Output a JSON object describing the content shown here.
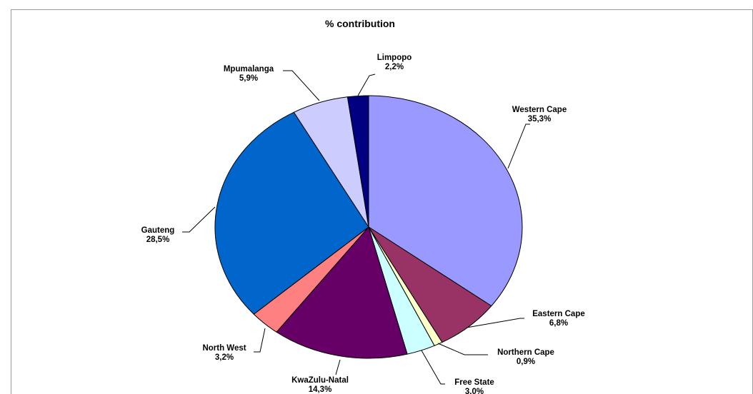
{
  "chart_data": {
    "type": "pie",
    "title": "% contribution",
    "legend": "none",
    "slices": [
      {
        "label": "Western Cape",
        "value_label": "35,3%",
        "value": 35.3,
        "color": "#9999FF"
      },
      {
        "label": "Eastern Cape",
        "value_label": "6,8%",
        "value": 6.8,
        "color": "#993366"
      },
      {
        "label": "Northern Cape",
        "value_label": "0,9%",
        "value": 0.9,
        "color": "#FFFFCC"
      },
      {
        "label": "Free State",
        "value_label": "3,0%",
        "value": 3.0,
        "color": "#CCFFFF"
      },
      {
        "label": "KwaZulu-Natal",
        "value_label": "14,3%",
        "value": 14.3,
        "color": "#660066"
      },
      {
        "label": "North West",
        "value_label": "3,2%",
        "value": 3.2,
        "color": "#FF8080"
      },
      {
        "label": "Gauteng",
        "value_label": "28,5%",
        "value": 28.5,
        "color": "#0066CC"
      },
      {
        "label": "Mpumalanga",
        "value_label": "5,9%",
        "value": 5.9,
        "color": "#CCCCFF"
      },
      {
        "label": "Limpopo",
        "value_label": "2,2%",
        "value": 2.2,
        "color": "#000080"
      }
    ]
  }
}
